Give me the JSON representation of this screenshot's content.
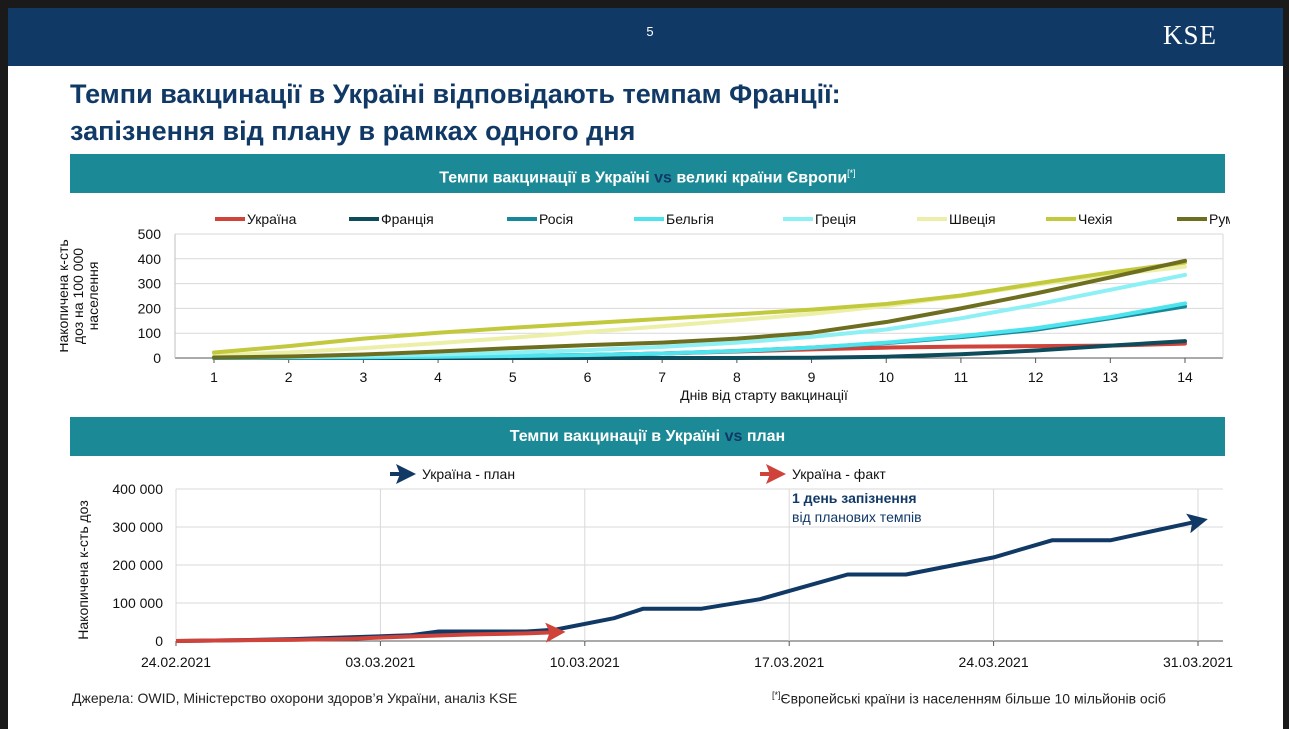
{
  "header": {
    "page_number": "5",
    "logo": "KSE"
  },
  "title_line1": "Темпи вакцинації в Україні відповідають темпам Франції:",
  "title_line2": "запізнення від плану в рамках одного дня",
  "band1": {
    "prefix": "Темпи вакцинації в Україні",
    "vs": "vs",
    "suffix": "великі країни Європи",
    "note": "[*]"
  },
  "band2": {
    "prefix": "Темпи вакцинації в Україні",
    "vs": "vs",
    "suffix": "план"
  },
  "footer": {
    "sources": "Джерела: OWID, Міністерство охорони здоров’я України, аналіз KSE",
    "note_mark": "[*]",
    "note_text": "Європейські країни із населенням більше 10 мільйонів осіб"
  },
  "colors": {
    "navy": "#113966",
    "teal_band": "#1c8a96",
    "ukraine": "#d0433a",
    "france": "#0e4b5b",
    "russia": "#17889a",
    "belgium": "#4fe3ee",
    "greece": "#8cf0f4",
    "sweden": "#ecefa7",
    "czechia": "#c2c93c",
    "romania": "#6e6e21"
  },
  "chart_data": [
    {
      "type": "line",
      "title": "",
      "xlabel": "Днів від старту вакцинації",
      "ylabel": "Накопичена к-сть доз на 100 000 населення",
      "ylim": [
        0,
        500
      ],
      "yticks": [
        "0",
        "100",
        "200",
        "300",
        "400",
        "500"
      ],
      "x": [
        1,
        2,
        3,
        4,
        5,
        6,
        7,
        8,
        9,
        10,
        11,
        12,
        13,
        14
      ],
      "grid": true,
      "legend_position": "top",
      "series": [
        {
          "name": "Україна",
          "color": "#d0433a",
          "values": [
            1,
            2,
            3,
            5,
            8,
            12,
            18,
            26,
            35,
            42,
            46,
            48,
            50,
            58
          ]
        },
        {
          "name": "Франція",
          "color": "#0e4b5b",
          "values": [
            0,
            0,
            0,
            0,
            0,
            0,
            0,
            0,
            1,
            5,
            15,
            30,
            50,
            68
          ]
        },
        {
          "name": "Росія",
          "color": "#17889a",
          "values": [
            1,
            2,
            3,
            5,
            8,
            12,
            18,
            28,
            42,
            60,
            84,
            114,
            160,
            208
          ]
        },
        {
          "name": "Бельгія",
          "color": "#4fe3ee",
          "values": [
            1,
            2,
            3,
            5,
            8,
            12,
            18,
            28,
            42,
            62,
            88,
            120,
            165,
            220
          ]
        },
        {
          "name": "Греція",
          "color": "#8cf0f4",
          "values": [
            2,
            4,
            8,
            14,
            22,
            32,
            45,
            62,
            85,
            115,
            160,
            215,
            275,
            335
          ]
        },
        {
          "name": "Швеція",
          "color": "#ecefa7",
          "values": [
            10,
            22,
            40,
            60,
            82,
            105,
            128,
            152,
            178,
            210,
            250,
            295,
            335,
            368
          ]
        },
        {
          "name": "Чехія",
          "color": "#c2c93c",
          "values": [
            22,
            48,
            78,
            102,
            122,
            140,
            158,
            176,
            195,
            218,
            252,
            300,
            345,
            385
          ]
        },
        {
          "name": "Румунія",
          "color": "#6e6e21",
          "values": [
            2,
            6,
            14,
            26,
            40,
            52,
            62,
            78,
            102,
            145,
            200,
            260,
            325,
            392
          ]
        }
      ]
    },
    {
      "type": "line",
      "title": "",
      "xlabel": "",
      "ylabel": "Накопичена к-сть доз",
      "ylim": [
        0,
        400000
      ],
      "yticks": [
        "0",
        "100 000",
        "200 000",
        "300 000",
        "400 000"
      ],
      "xticks": [
        "24.02.2021",
        "03.03.2021",
        "10.03.2021",
        "17.03.2021",
        "24.03.2021",
        "31.03.2021"
      ],
      "x_start": "24.02.2021",
      "legend_position": "top",
      "series": [
        {
          "name": "Україна - план",
          "color": "#113966",
          "x": [
            "24.02.2021",
            "26.02.2021",
            "28.02.2021",
            "02.03.2021",
            "04.03.2021",
            "05.03.2021",
            "07.03.2021",
            "08.03.2021",
            "09.03.2021",
            "11.03.2021",
            "12.03.2021",
            "14.03.2021",
            "16.03.2021",
            "19.03.2021",
            "21.03.2021",
            "24.03.2021",
            "26.03.2021",
            "28.03.2021",
            "31.03.2021"
          ],
          "values": [
            0,
            2000,
            5000,
            10000,
            15000,
            25000,
            25000,
            25000,
            30000,
            60000,
            85000,
            85000,
            110000,
            175000,
            175000,
            220000,
            265000,
            265000,
            315000
          ]
        },
        {
          "name": "Україна - факт",
          "color": "#d0433a",
          "x": [
            "24.02.2021",
            "26.02.2021",
            "28.02.2021",
            "02.03.2021",
            "04.03.2021",
            "06.03.2021",
            "08.03.2021",
            "09.03.2021"
          ],
          "values": [
            0,
            2000,
            3000,
            6000,
            12000,
            17000,
            20000,
            23000
          ]
        }
      ],
      "annotation_bold": "1 день запізнення",
      "annotation_text": "від планових темпів"
    }
  ]
}
